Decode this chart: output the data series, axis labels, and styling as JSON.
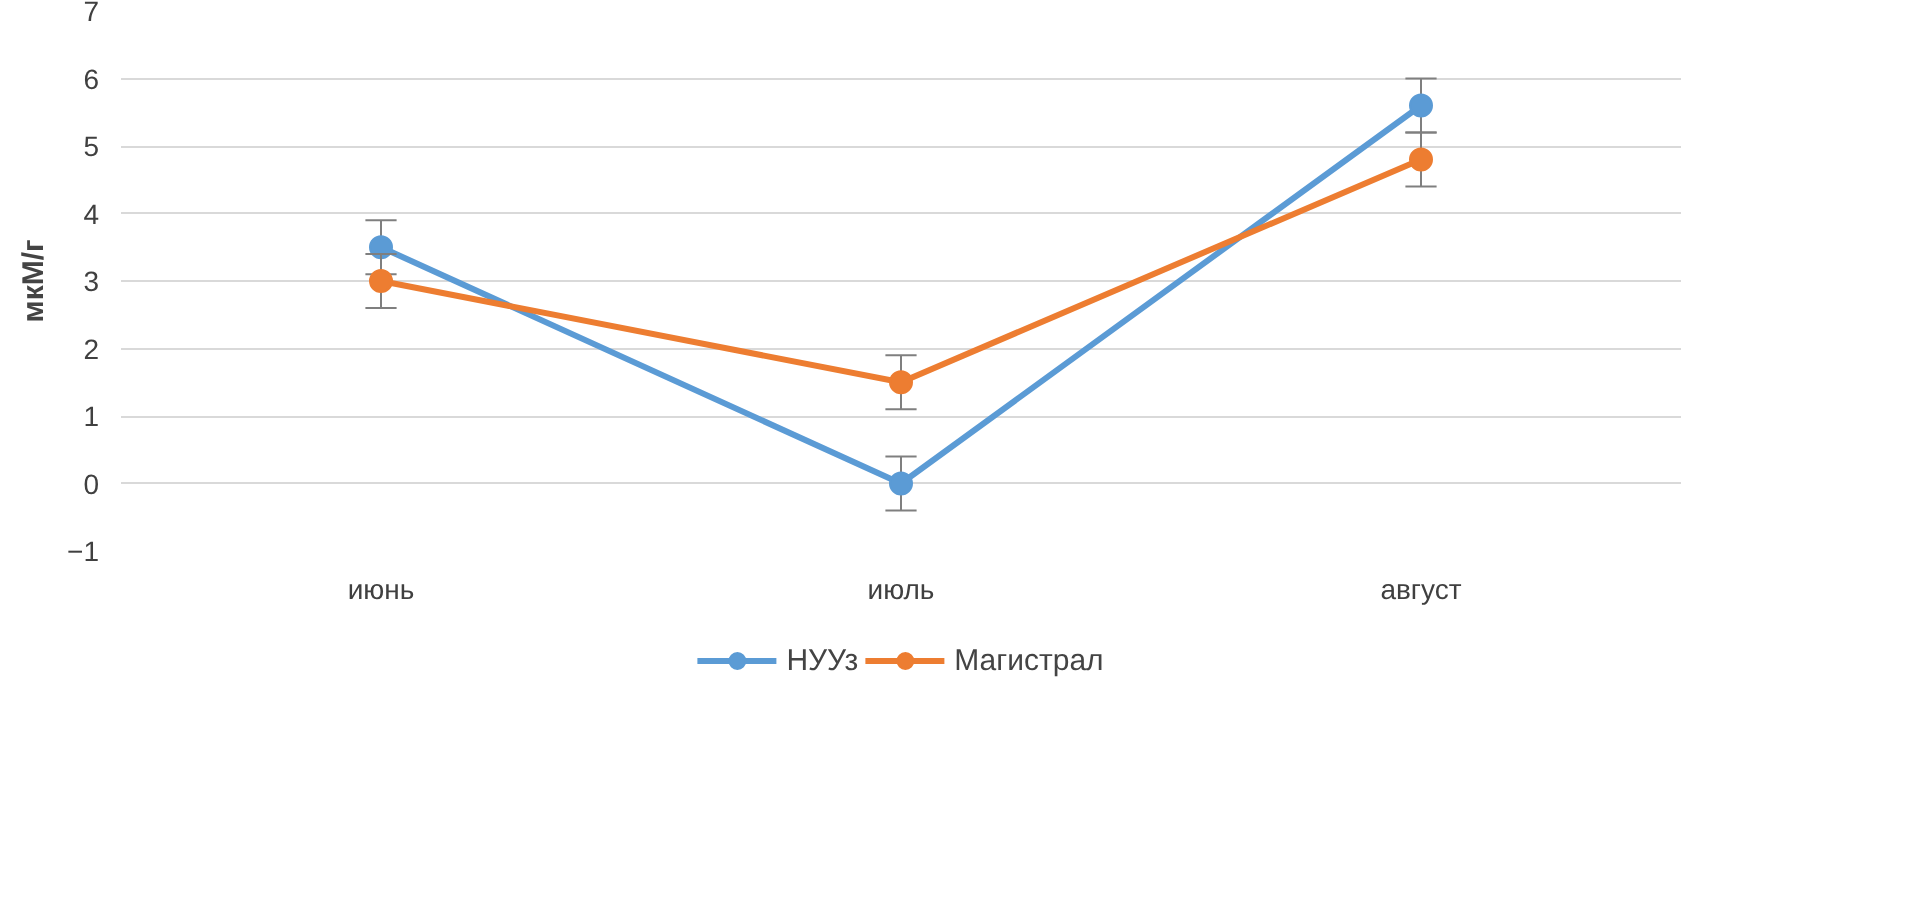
{
  "chart_data": {
    "type": "line",
    "ylabel": "мкМ/г",
    "categories": [
      "июнь",
      "июль",
      "август"
    ],
    "series": [
      {
        "name": "НУУз",
        "color": "#5b9bd5",
        "values": [
          3.5,
          0,
          5.6
        ],
        "errors": [
          0.4,
          0.4,
          0.4
        ]
      },
      {
        "name": "Магистрал",
        "color": "#ed7d31",
        "values": [
          3.0,
          1.5,
          4.8
        ],
        "errors": [
          0.4,
          0.4,
          0.4
        ]
      }
    ],
    "ylim": [
      -1,
      7
    ],
    "yticks": [
      -1,
      0,
      1,
      2,
      3,
      4,
      5,
      6,
      7
    ],
    "grid": "y",
    "legend": "bottom",
    "marker": "circle",
    "line_style": "solid"
  }
}
